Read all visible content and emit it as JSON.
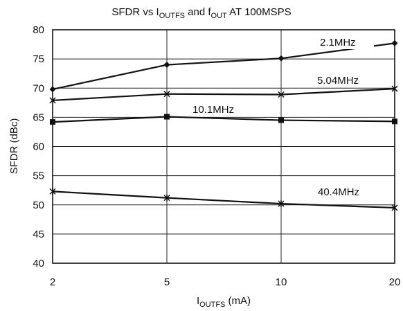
{
  "chart_data": {
    "type": "line",
    "title": {
      "prefix": "SFDR vs I",
      "prefix_sub": "OUTFS",
      "middle": " and f",
      "middle_sub": "OUT",
      "suffix": " AT 100MSPS"
    },
    "xlabel": {
      "main": "I",
      "sub": "OUTFS",
      "suffix": " (mA)"
    },
    "ylabel": "SFDR (dBc)",
    "x_categories": [
      "2",
      "5",
      "10",
      "20"
    ],
    "ylim": [
      40,
      80
    ],
    "y_ticks": [
      40,
      45,
      50,
      55,
      60,
      65,
      70,
      75,
      80
    ],
    "x_scale": "categorical",
    "grid": true,
    "series": [
      {
        "name": "2.1MHz",
        "marker": "diamond",
        "values": [
          69.8,
          74.0,
          75.1,
          77.7
        ]
      },
      {
        "name": "5.04MHz",
        "marker": "x",
        "values": [
          67.9,
          69.0,
          68.9,
          69.9
        ]
      },
      {
        "name": "10.1MHz",
        "marker": "square",
        "values": [
          64.2,
          65.1,
          64.5,
          64.3
        ]
      },
      {
        "name": "40.4MHz",
        "marker": "star",
        "values": [
          52.3,
          51.2,
          50.2,
          49.5
        ]
      }
    ],
    "colors": {
      "line": "#111111",
      "grid": "#222222",
      "background": "#ffffff"
    }
  }
}
